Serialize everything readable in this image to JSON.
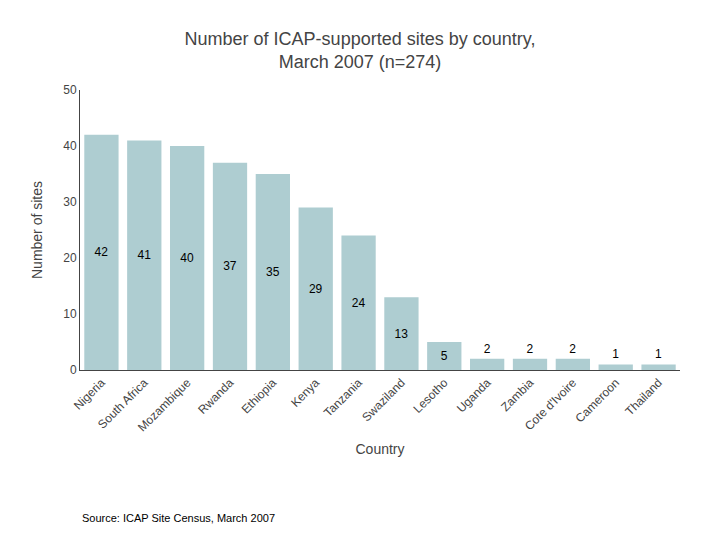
{
  "chart_data": {
    "type": "bar",
    "title": "Number of ICAP-supported sites by country,\nMarch 2007 (n=274)",
    "xlabel": "Country",
    "ylabel": "Number of sites",
    "categories": [
      "Nigeria",
      "South Africa",
      "Mozambique",
      "Rwanda",
      "Ethiopia",
      "Kenya",
      "Tanzania",
      "Swaziland",
      "Lesotho",
      "Uganda",
      "Zambia",
      "Cote d'Ivoire",
      "Cameroon",
      "Thailand"
    ],
    "values": [
      42,
      41,
      40,
      37,
      35,
      29,
      24,
      13,
      5,
      2,
      2,
      2,
      1,
      1
    ],
    "color": "#aecdd1",
    "ylim": [
      0,
      50
    ],
    "yticks": [
      0,
      10,
      20,
      30,
      40,
      50
    ],
    "grid": false,
    "data_labels": true,
    "source": "Source: ICAP Site Census, March 2007"
  }
}
